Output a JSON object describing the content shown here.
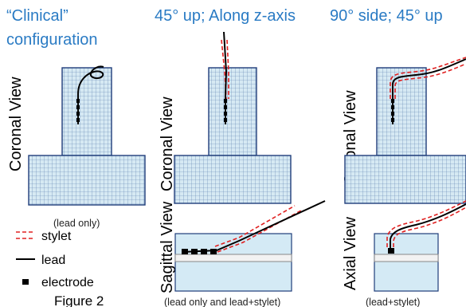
{
  "columns": {
    "clinical_title": "“Clinical” configuration",
    "clinical_title_line1": "“Clinical”",
    "clinical_title_line2": "configuration",
    "up45_title": "45° up; Along z-axis",
    "side90_title": "90° side; 45° up"
  },
  "views": {
    "coronal": "Coronal View",
    "sagittal": "Sagittal View",
    "axial": "Axial View"
  },
  "captions": {
    "lead_only": "(lead only)",
    "lead_and_stylet": "(lead only and lead+stylet)",
    "lead_plus_stylet": "(lead+stylet)"
  },
  "legend": {
    "stylet": "stylet",
    "lead": "lead",
    "electrode": "electrode"
  },
  "figure_label": "Figure 2",
  "colors": {
    "title_blue": "#2a7bc4",
    "stylet_red": "#e02020",
    "grid_blue": "#1f3d7a",
    "tissue_fill": "#d6e9f3"
  }
}
